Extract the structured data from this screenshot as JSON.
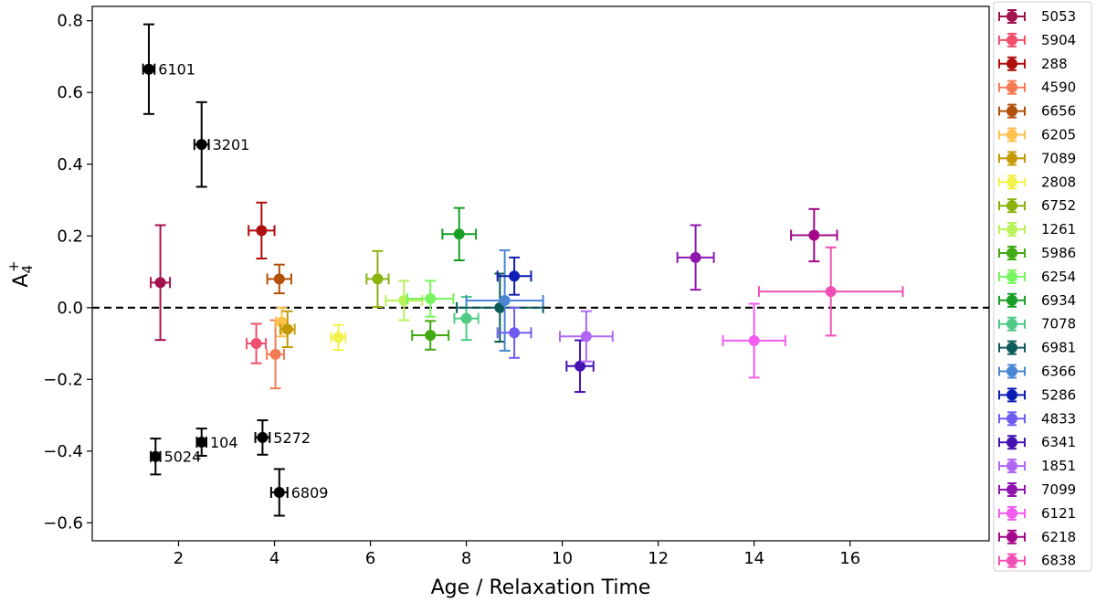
{
  "chart_data": {
    "type": "scatter",
    "xlabel": "Age / Relaxation Time",
    "ylabel_main": "A",
    "ylabel_sub": "4",
    "ylabel_sup": "+",
    "xlim": [
      0.2,
      18.9
    ],
    "ylim": [
      -0.65,
      0.84
    ],
    "xticks": [
      2,
      4,
      6,
      8,
      10,
      12,
      14,
      16
    ],
    "yticks": [
      -0.6,
      -0.4,
      -0.2,
      0.0,
      0.2,
      0.4,
      0.6,
      0.8
    ],
    "ytick_labels": [
      "−0.6",
      "−0.4",
      "−0.2",
      "0.0",
      "0.2",
      "0.4",
      "0.6",
      "0.8"
    ],
    "reference_line_y": 0.0,
    "legend_position": "outside-right",
    "series": [
      {
        "name": "5053",
        "color": "#a3134e",
        "x": 1.62,
        "y": 0.07,
        "xerr": 0.2,
        "yerr": 0.16
      },
      {
        "name": "5904",
        "color": "#f0506e",
        "x": 3.62,
        "y": -0.1,
        "xerr": 0.2,
        "yerr": 0.055
      },
      {
        "name": "288",
        "color": "#b00d0d",
        "x": 3.73,
        "y": 0.215,
        "xerr": 0.27,
        "yerr": 0.078
      },
      {
        "name": "4590",
        "color": "#f47b54",
        "x": 4.02,
        "y": -0.13,
        "xerr": 0.18,
        "yerr": 0.095
      },
      {
        "name": "6656",
        "color": "#b3500a",
        "x": 4.1,
        "y": 0.08,
        "xerr": 0.25,
        "yerr": 0.04
      },
      {
        "name": "6205",
        "color": "#ffc04d",
        "x": 4.15,
        "y": -0.04,
        "xerr": 0.12,
        "yerr": 0.04
      },
      {
        "name": "7089",
        "color": "#c29a08",
        "x": 4.27,
        "y": -0.06,
        "xerr": 0.15,
        "yerr": 0.05
      },
      {
        "name": "2808",
        "color": "#f2f24a",
        "x": 5.33,
        "y": -0.083,
        "xerr": 0.15,
        "yerr": 0.035
      },
      {
        "name": "6752",
        "color": "#8ab20f",
        "x": 6.15,
        "y": 0.08,
        "xerr": 0.23,
        "yerr": 0.078
      },
      {
        "name": "1261",
        "color": "#b8f25a",
        "x": 6.7,
        "y": 0.02,
        "xerr": 0.38,
        "yerr": 0.055
      },
      {
        "name": "5986",
        "color": "#3faa12",
        "x": 7.25,
        "y": -0.077,
        "xerr": 0.38,
        "yerr": 0.04
      },
      {
        "name": "6254",
        "color": "#78f560",
        "x": 7.25,
        "y": 0.025,
        "xerr": 0.48,
        "yerr": 0.05
      },
      {
        "name": "6934",
        "color": "#189e24",
        "x": 7.85,
        "y": 0.205,
        "xerr": 0.35,
        "yerr": 0.073
      },
      {
        "name": "7078",
        "color": "#4fcb86",
        "x": 8.0,
        "y": -0.03,
        "xerr": 0.25,
        "yerr": 0.06
      },
      {
        "name": "6981",
        "color": "#0d5a5a",
        "x": 8.7,
        "y": 0.0,
        "xerr": 0.9,
        "yerr": 0.095
      },
      {
        "name": "6366",
        "color": "#4a86d4",
        "x": 8.8,
        "y": 0.02,
        "xerr": 0.8,
        "yerr": 0.14
      },
      {
        "name": "5286",
        "color": "#0e1db3",
        "x": 9.0,
        "y": 0.088,
        "xerr": 0.35,
        "yerr": 0.052
      },
      {
        "name": "4833",
        "color": "#6d5cf0",
        "x": 9.0,
        "y": -0.07,
        "xerr": 0.35,
        "yerr": 0.07
      },
      {
        "name": "6341",
        "color": "#4412b0",
        "x": 10.37,
        "y": -0.163,
        "xerr": 0.28,
        "yerr": 0.072
      },
      {
        "name": "1851",
        "color": "#b066f2",
        "x": 10.5,
        "y": -0.08,
        "xerr": 0.55,
        "yerr": 0.07
      },
      {
        "name": "7099",
        "color": "#8f16ad",
        "x": 12.78,
        "y": 0.14,
        "xerr": 0.38,
        "yerr": 0.09
      },
      {
        "name": "6121",
        "color": "#f35cf0",
        "x": 14.0,
        "y": -0.092,
        "xerr": 0.65,
        "yerr": 0.103
      },
      {
        "name": "6218",
        "color": "#a3088a",
        "x": 15.25,
        "y": 0.202,
        "xerr": 0.48,
        "yerr": 0.073
      },
      {
        "name": "6838",
        "color": "#f050b5",
        "x": 15.6,
        "y": 0.045,
        "xerr": 1.5,
        "yerr": 0.123
      }
    ],
    "annotated_points": [
      {
        "label": "6101",
        "color": "#000000",
        "x": 1.38,
        "y": 0.665,
        "xerr": 0.12,
        "yerr": 0.125
      },
      {
        "label": "3201",
        "color": "#000000",
        "x": 2.48,
        "y": 0.455,
        "xerr": 0.15,
        "yerr": 0.118
      },
      {
        "label": "5024",
        "color": "#000000",
        "x": 1.52,
        "y": -0.415,
        "xerr": 0.1,
        "yerr": 0.05
      },
      {
        "label": "104",
        "color": "#000000",
        "x": 2.48,
        "y": -0.375,
        "xerr": 0.1,
        "yerr": 0.038
      },
      {
        "label": "5272",
        "color": "#000000",
        "x": 3.75,
        "y": -0.362,
        "xerr": 0.15,
        "yerr": 0.048
      },
      {
        "label": "6809",
        "color": "#000000",
        "x": 4.1,
        "y": -0.515,
        "xerr": 0.17,
        "yerr": 0.065
      }
    ]
  }
}
